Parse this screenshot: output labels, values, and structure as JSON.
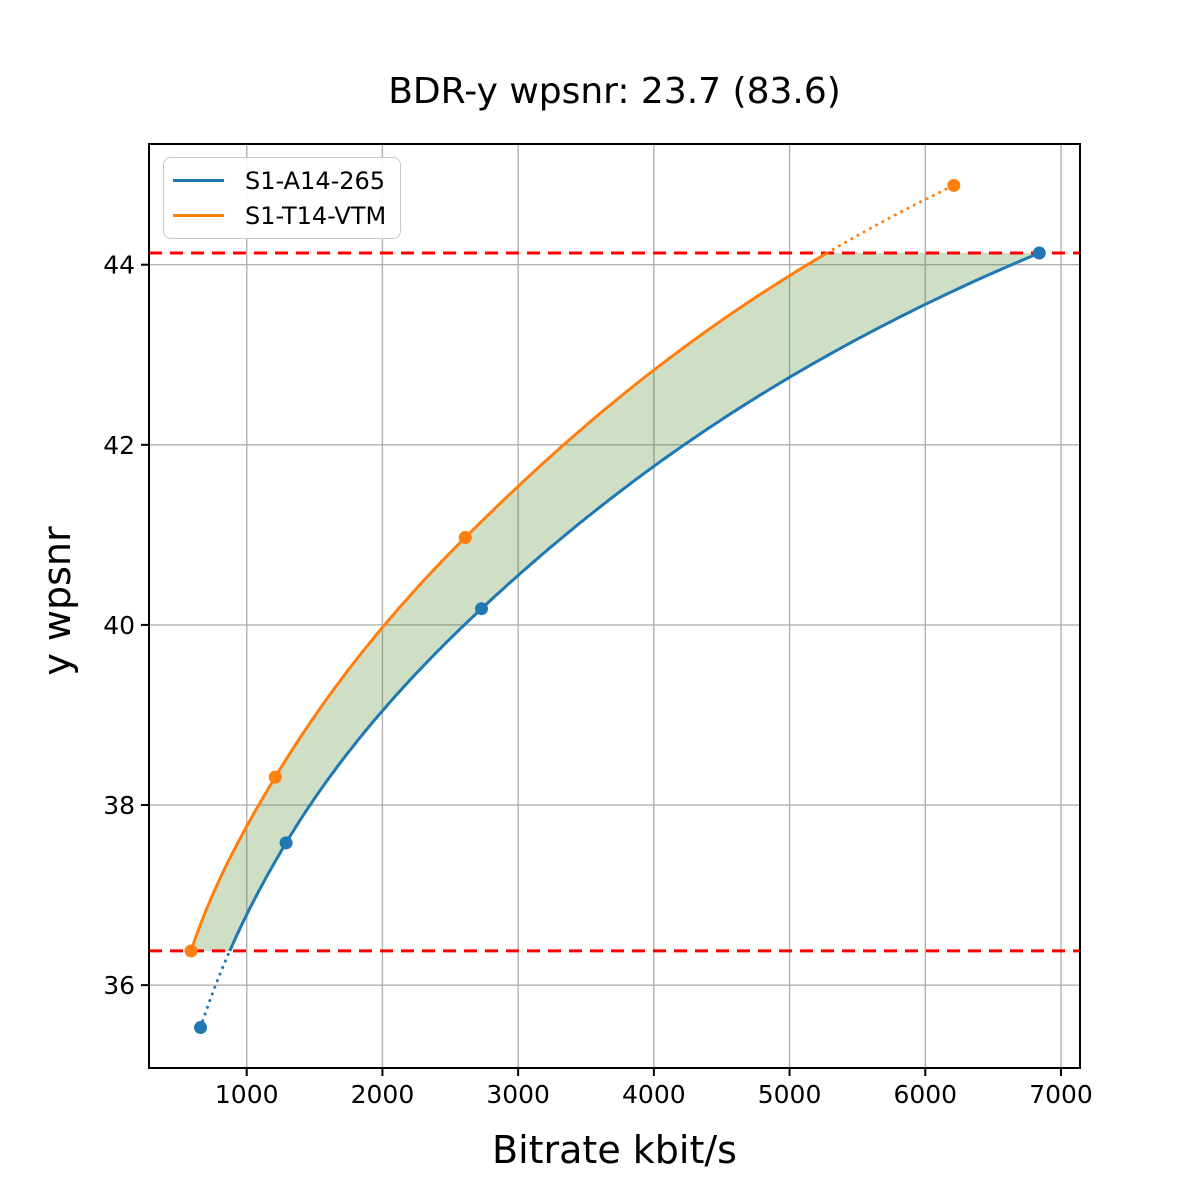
{
  "figure": {
    "background": "#ffffff"
  },
  "chart_data": {
    "type": "line",
    "title": "BDR-y wpsnr: 23.7 (83.6)",
    "xlabel": "Bitrate kbit/s",
    "ylabel": "y wpsnr",
    "xlim": [
      280,
      7140
    ],
    "ylim": [
      35.08,
      45.34
    ],
    "xticks": [
      1000,
      2000,
      3000,
      4000,
      5000,
      6000,
      7000
    ],
    "yticks": [
      36,
      38,
      40,
      42,
      44
    ],
    "grid": true,
    "grid_color": "#b0b0b0",
    "axis_color": "#000000",
    "legend_position": "upper left",
    "series": [
      {
        "name": "S1-A14-265",
        "color": "#1f77b4",
        "x": [
          660,
          1290,
          2730,
          6840
        ],
        "y": [
          35.53,
          37.58,
          40.18,
          44.13
        ]
      },
      {
        "name": "S1-T14-VTM",
        "color": "#ff7f0e",
        "x": [
          590,
          1210,
          2610,
          6210
        ],
        "y": [
          36.38,
          38.31,
          40.97,
          44.88
        ]
      }
    ],
    "overlap_band": {
      "y_low": 36.38,
      "y_high": 44.13,
      "line_color": "#ff0000",
      "fill_color": "rgba(80,140,50,0.28)"
    }
  }
}
